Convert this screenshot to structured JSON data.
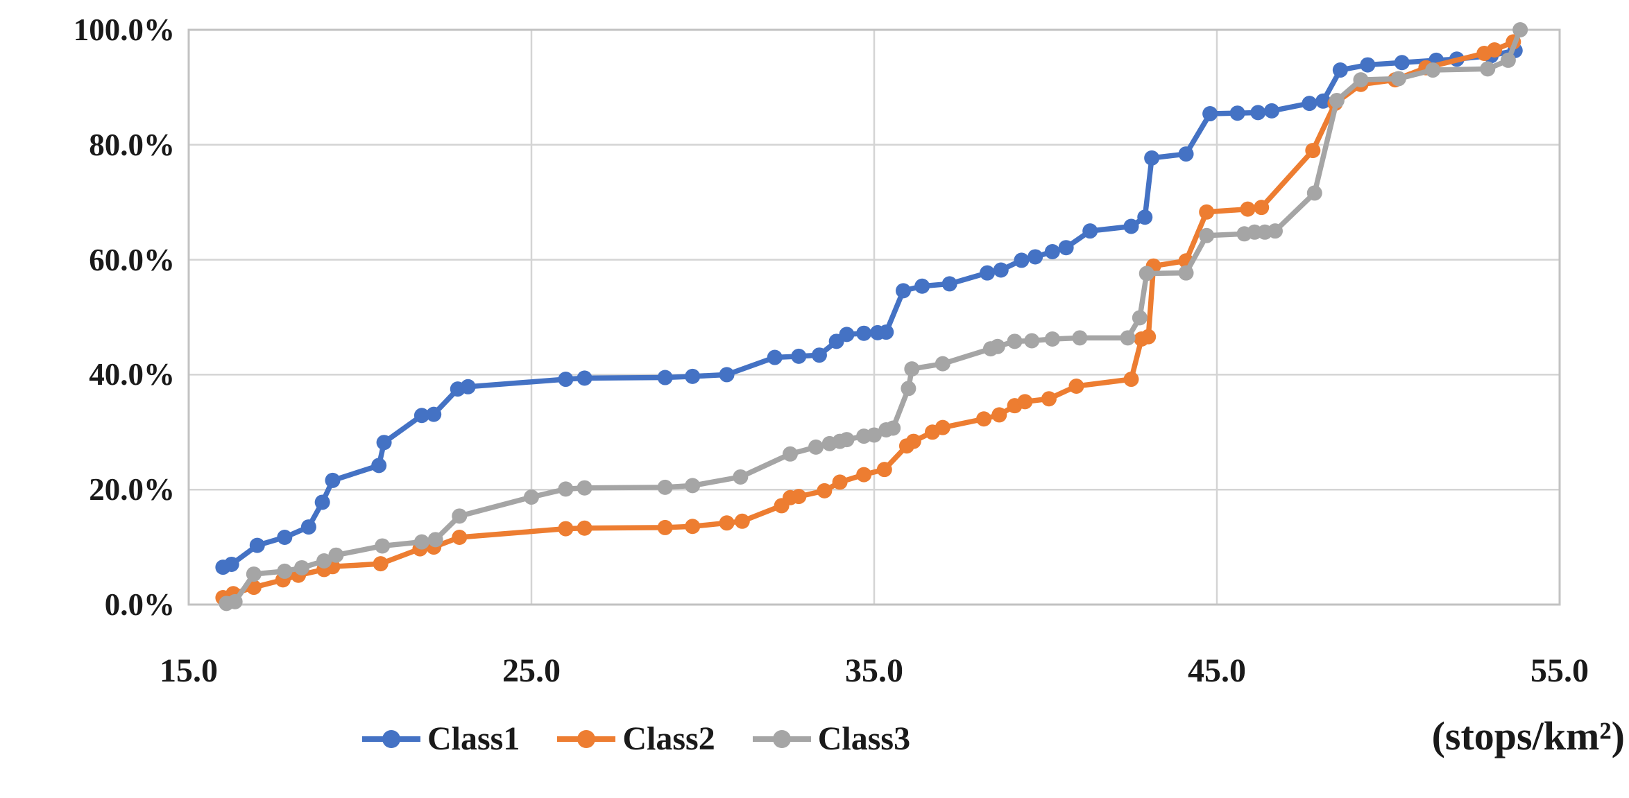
{
  "chart_data": {
    "type": "line",
    "title": "",
    "grid": true,
    "legend_position": "bottom",
    "x_axis": {
      "min": 15,
      "max": 55,
      "tick_values": [
        15,
        25,
        35,
        45,
        55
      ],
      "tick_labels": [
        "15.0",
        "25.0",
        "35.0",
        "45.0",
        "55.0"
      ],
      "unit_label": "(stops/km²)"
    },
    "y_axis": {
      "min": 0,
      "max": 100,
      "tick_values": [
        0,
        20,
        40,
        60,
        80,
        100
      ],
      "tick_labels": [
        "0.0%",
        "20.0%",
        "40.0%",
        "60.0%",
        "80.0%",
        "100.0%"
      ]
    },
    "series": [
      {
        "name": "Class1",
        "color": "#4472C4",
        "points": [
          [
            16.0,
            6.5
          ],
          [
            16.25,
            7.0
          ],
          [
            17.0,
            10.3
          ],
          [
            17.8,
            11.7
          ],
          [
            18.5,
            13.5
          ],
          [
            18.9,
            17.8
          ],
          [
            19.2,
            21.6
          ],
          [
            20.55,
            24.2
          ],
          [
            20.7,
            28.2
          ],
          [
            21.8,
            32.9
          ],
          [
            22.15,
            33.1
          ],
          [
            22.85,
            37.5
          ],
          [
            23.15,
            37.9
          ],
          [
            26.0,
            39.2
          ],
          [
            26.55,
            39.4
          ],
          [
            28.9,
            39.5
          ],
          [
            29.7,
            39.7
          ],
          [
            30.7,
            40.0
          ],
          [
            32.1,
            43.0
          ],
          [
            32.8,
            43.2
          ],
          [
            33.4,
            43.4
          ],
          [
            33.9,
            45.8
          ],
          [
            34.2,
            47.0
          ],
          [
            34.7,
            47.2
          ],
          [
            35.1,
            47.3
          ],
          [
            35.35,
            47.4
          ],
          [
            35.85,
            54.6
          ],
          [
            36.4,
            55.4
          ],
          [
            37.2,
            55.8
          ],
          [
            38.3,
            57.7
          ],
          [
            38.7,
            58.2
          ],
          [
            39.3,
            59.9
          ],
          [
            39.7,
            60.5
          ],
          [
            40.2,
            61.4
          ],
          [
            40.6,
            62.1
          ],
          [
            41.3,
            65.0
          ],
          [
            42.5,
            65.8
          ],
          [
            42.9,
            67.4
          ],
          [
            43.1,
            77.7
          ],
          [
            44.1,
            78.4
          ],
          [
            44.8,
            85.4
          ],
          [
            45.6,
            85.5
          ],
          [
            46.2,
            85.6
          ],
          [
            46.6,
            85.9
          ],
          [
            47.7,
            87.2
          ],
          [
            48.1,
            87.6
          ],
          [
            48.6,
            93.0
          ],
          [
            49.4,
            93.9
          ],
          [
            50.4,
            94.3
          ],
          [
            51.4,
            94.7
          ],
          [
            52.0,
            94.9
          ],
          [
            53.0,
            95.5
          ],
          [
            53.7,
            96.4
          ]
        ]
      },
      {
        "name": "Class2",
        "color": "#ED7D31",
        "points": [
          [
            16.0,
            1.2
          ],
          [
            16.3,
            1.9
          ],
          [
            16.9,
            3.0
          ],
          [
            17.75,
            4.3
          ],
          [
            18.2,
            5.1
          ],
          [
            18.95,
            6.1
          ],
          [
            19.2,
            6.6
          ],
          [
            20.6,
            7.1
          ],
          [
            21.75,
            9.7
          ],
          [
            22.15,
            10.0
          ],
          [
            22.9,
            11.7
          ],
          [
            26.0,
            13.2
          ],
          [
            26.55,
            13.3
          ],
          [
            28.9,
            13.4
          ],
          [
            29.7,
            13.6
          ],
          [
            30.7,
            14.2
          ],
          [
            31.15,
            14.5
          ],
          [
            32.3,
            17.2
          ],
          [
            32.55,
            18.6
          ],
          [
            32.8,
            18.8
          ],
          [
            33.55,
            19.8
          ],
          [
            34.0,
            21.3
          ],
          [
            34.7,
            22.6
          ],
          [
            35.3,
            23.5
          ],
          [
            35.95,
            27.6
          ],
          [
            36.15,
            28.4
          ],
          [
            36.7,
            30.0
          ],
          [
            37.0,
            30.8
          ],
          [
            38.2,
            32.3
          ],
          [
            38.65,
            33.0
          ],
          [
            39.1,
            34.6
          ],
          [
            39.4,
            35.3
          ],
          [
            40.1,
            35.8
          ],
          [
            40.9,
            38.0
          ],
          [
            42.5,
            39.2
          ],
          [
            42.8,
            46.2
          ],
          [
            43.0,
            46.6
          ],
          [
            43.15,
            58.9
          ],
          [
            44.1,
            59.8
          ],
          [
            44.7,
            68.3
          ],
          [
            45.9,
            68.8
          ],
          [
            46.3,
            69.1
          ],
          [
            47.8,
            79.0
          ],
          [
            48.45,
            87.2
          ],
          [
            49.2,
            90.5
          ],
          [
            50.2,
            91.3
          ],
          [
            51.1,
            93.4
          ],
          [
            52.8,
            95.9
          ],
          [
            53.1,
            96.5
          ],
          [
            53.65,
            97.9
          ]
        ]
      },
      {
        "name": "Class3",
        "color": "#A5A5A5",
        "points": [
          [
            16.1,
            0.2
          ],
          [
            16.35,
            0.5
          ],
          [
            16.9,
            5.3
          ],
          [
            17.8,
            5.8
          ],
          [
            18.3,
            6.4
          ],
          [
            18.95,
            7.6
          ],
          [
            19.3,
            8.6
          ],
          [
            20.65,
            10.2
          ],
          [
            21.8,
            10.9
          ],
          [
            22.2,
            11.3
          ],
          [
            22.9,
            15.4
          ],
          [
            25.0,
            18.7
          ],
          [
            26.0,
            20.1
          ],
          [
            26.55,
            20.3
          ],
          [
            28.9,
            20.4
          ],
          [
            29.7,
            20.7
          ],
          [
            31.1,
            22.2
          ],
          [
            32.55,
            26.2
          ],
          [
            33.3,
            27.4
          ],
          [
            33.7,
            28.0
          ],
          [
            34.0,
            28.4
          ],
          [
            34.2,
            28.7
          ],
          [
            34.7,
            29.3
          ],
          [
            35.0,
            29.5
          ],
          [
            35.35,
            30.4
          ],
          [
            35.55,
            30.7
          ],
          [
            36.0,
            37.6
          ],
          [
            36.1,
            41.0
          ],
          [
            37.0,
            41.9
          ],
          [
            38.4,
            44.5
          ],
          [
            38.6,
            44.9
          ],
          [
            39.1,
            45.8
          ],
          [
            39.6,
            45.9
          ],
          [
            40.2,
            46.2
          ],
          [
            41.0,
            46.4
          ],
          [
            42.4,
            46.4
          ],
          [
            42.75,
            49.9
          ],
          [
            42.95,
            57.6
          ],
          [
            44.1,
            57.7
          ],
          [
            44.7,
            64.2
          ],
          [
            45.8,
            64.5
          ],
          [
            46.1,
            64.8
          ],
          [
            46.4,
            64.8
          ],
          [
            46.7,
            65.0
          ],
          [
            47.85,
            71.6
          ],
          [
            48.5,
            87.7
          ],
          [
            49.2,
            91.3
          ],
          [
            50.3,
            91.5
          ],
          [
            51.3,
            93.0
          ],
          [
            52.9,
            93.2
          ],
          [
            53.5,
            94.7
          ],
          [
            53.85,
            100.0
          ]
        ]
      }
    ]
  }
}
